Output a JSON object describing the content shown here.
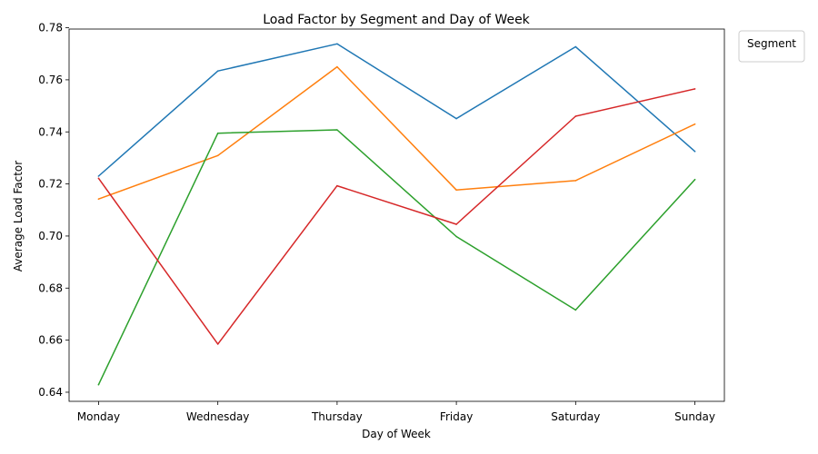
{
  "chart_data": {
    "type": "line",
    "title": "Load Factor by Segment and Day of Week",
    "xlabel": "Day of Week",
    "ylabel": "Average Load Factor",
    "categories": [
      "Monday",
      "Wednesday",
      "Thursday",
      "Friday",
      "Saturday",
      "Sunday"
    ],
    "ylim": [
      0.6365,
      0.7795
    ],
    "yticks": [
      "0.64",
      "0.66",
      "0.68",
      "0.70",
      "0.72",
      "0.74",
      "0.76",
      "0.78"
    ],
    "grid": false,
    "legend": {
      "title": "Segment",
      "placement": "outside-top-right"
    },
    "series": [
      {
        "color": "#1f77b4",
        "values": [
          0.723,
          0.7634,
          0.7738,
          0.7451,
          0.7727,
          0.7325
        ]
      },
      {
        "color": "#ff7f0e",
        "values": [
          0.7142,
          0.7309,
          0.765,
          0.7177,
          0.7213,
          0.743
        ]
      },
      {
        "color": "#2ca02c",
        "values": [
          0.6429,
          0.7395,
          0.7408,
          0.6998,
          0.6716,
          0.7217
        ]
      },
      {
        "color": "#d62728",
        "values": [
          0.7222,
          0.6585,
          0.7193,
          0.7045,
          0.746,
          0.7565
        ]
      }
    ]
  }
}
